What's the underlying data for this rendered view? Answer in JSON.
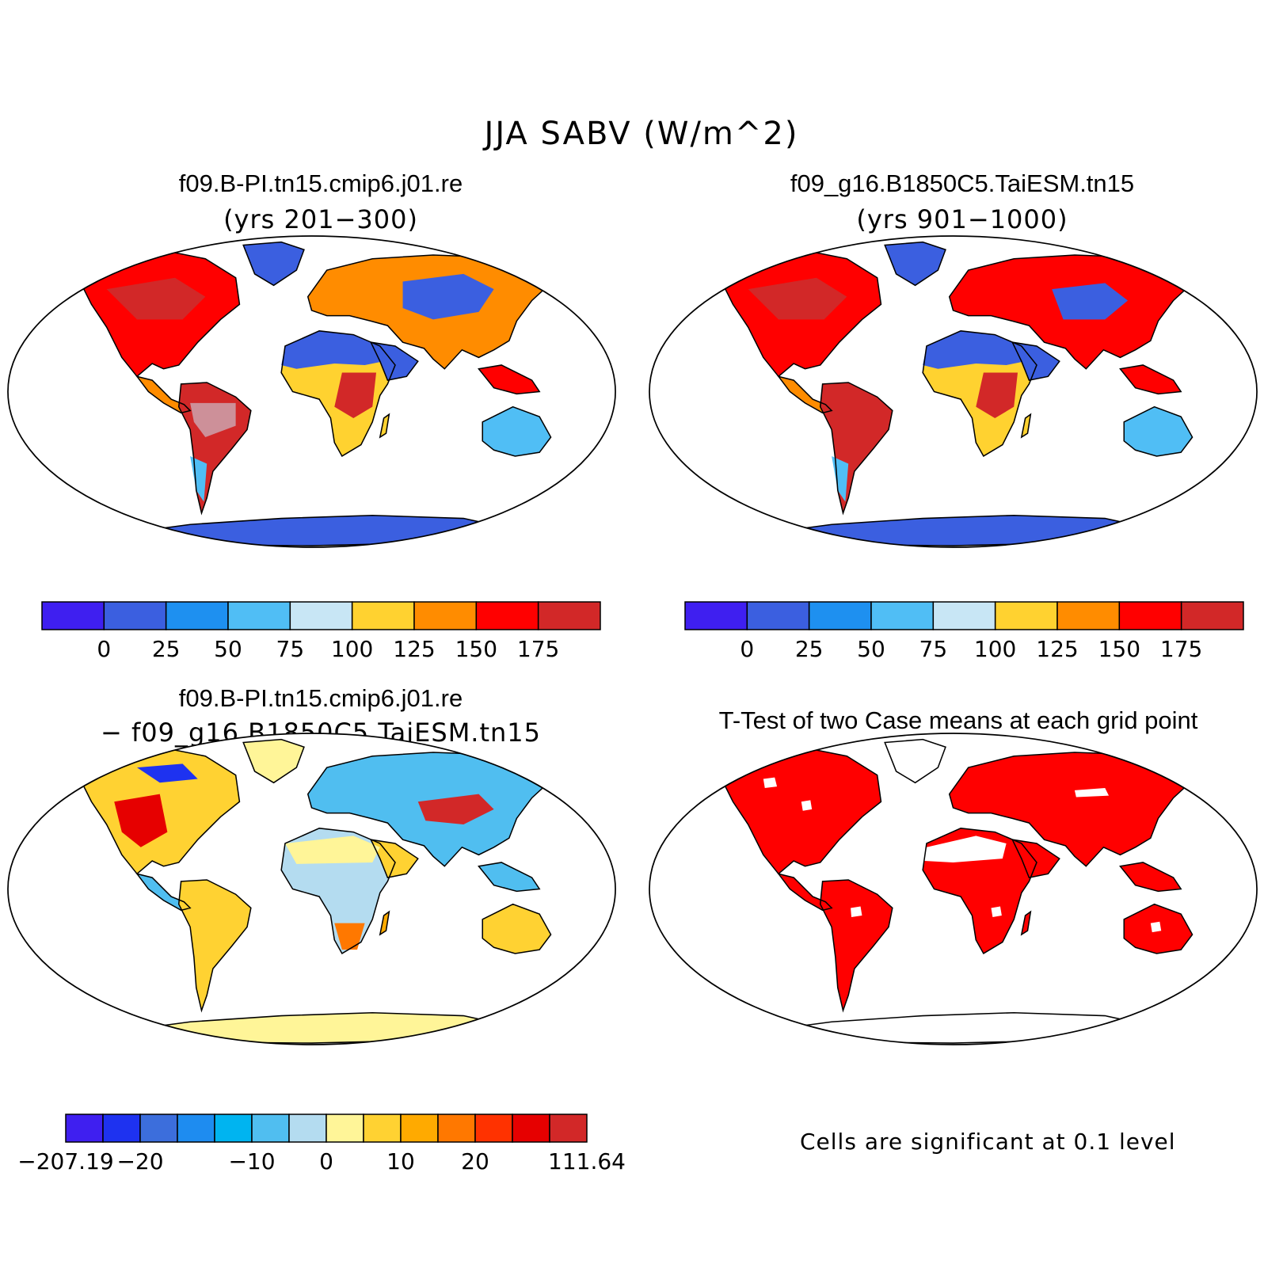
{
  "figure_title": "JJA SABV (W/m^2)",
  "panels": {
    "top_left": {
      "title": "f09.B-PI.tn15.cmip6.j01.re",
      "subtitle": "(yrs 201−300)"
    },
    "top_right": {
      "title": "f09_g16.B1850C5.TaiESM.tn15",
      "subtitle": "(yrs 901−1000)"
    },
    "bottom_left": {
      "title": "f09.B-PI.tn15.cmip6.j01.re",
      "subtitle": "− f09_g16.B1850C5.TaiESM.tn15"
    },
    "bottom_right": {
      "title": "T-Test of two Case means at each grid point",
      "note": "Cells are significant at 0.1 level"
    }
  },
  "colorbars": {
    "case": {
      "colors": [
        "#3f1ff0",
        "#3b5fe0",
        "#1e90f0",
        "#50bef5",
        "#c8e6f5",
        "#ffd230",
        "#ff8c00",
        "#ff0000",
        "#d22828"
      ],
      "labels": [
        "0",
        "25",
        "50",
        "75",
        "100",
        "125",
        "150",
        "175"
      ]
    },
    "diff": {
      "colors": [
        "#3f1ff0",
        "#1e32f0",
        "#3c6edc",
        "#1e8cf0",
        "#00b4f0",
        "#50bef0",
        "#b4dcf0",
        "#fff598",
        "#ffd232",
        "#ffaa00",
        "#ff7800",
        "#ff3200",
        "#e60000",
        "#d22828"
      ],
      "labels": [
        "−207.19",
        "−20",
        "−10",
        "0",
        "10",
        "20",
        "111.64"
      ],
      "label_boundaries": [
        0,
        2,
        5,
        7,
        9,
        11,
        14
      ]
    }
  },
  "legend_colors": {
    "significant": "#ff0000",
    "land_outline": "#000000",
    "cold": "#3b5fe0",
    "hot": "#d22828",
    "near_zero": "#fff598"
  }
}
